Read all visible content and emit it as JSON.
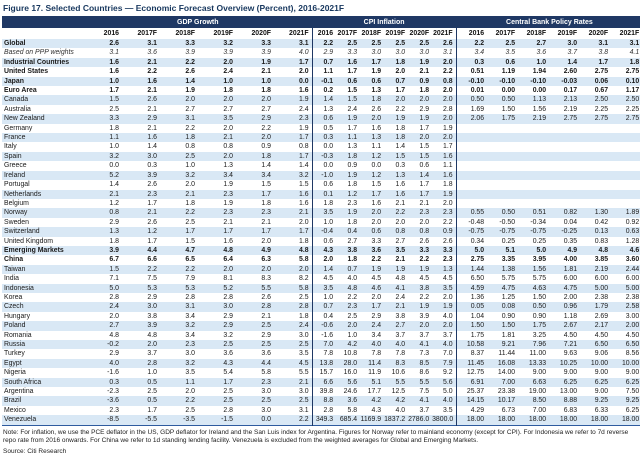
{
  "figure": {
    "title": "Figure 17. Selected Countries — Economic Forecast Overview (Percent), 2016-2021F",
    "note": "Note: For inflation, we use the PCE deflator in the US, GDP deflator for Ireland and the San Luis index for Argentina. Figures for Norway refer to mainland economy (except for CPI). For Indonesia we refer to 7d reverse repo rate from 2016 onwards. For China we refer to 1d standing lending facility. Venezuela is excluded from the weighted averages for Global and Emerging Markets.",
    "source": "Source: Citi Research"
  },
  "colors": {
    "header_band": "#1F3864",
    "row_stripe": "#D9E8F5",
    "title_text": "#17375E"
  },
  "chart_data": {
    "type": "table",
    "groups": [
      "GDP Growth",
      "CPI Inflation",
      "Central Bank Policy Rates"
    ],
    "years": [
      "2016",
      "2017F",
      "2018F",
      "2019F",
      "2020F",
      "2021F"
    ],
    "rows": [
      {
        "name": "Global",
        "style": "bold",
        "gdp": [
          "2.6",
          "3.1",
          "3.3",
          "3.2",
          "3.3",
          "3.1"
        ],
        "cpi": [
          "2.2",
          "2.5",
          "2.5",
          "2.5",
          "2.5",
          "2.6"
        ],
        "cbr": [
          "2.2",
          "2.5",
          "2.7",
          "3.0",
          "3.1",
          "3.1"
        ]
      },
      {
        "name": "Based on PPP weights",
        "style": "italic",
        "gdp": [
          "3.1",
          "3.6",
          "3.9",
          "3.9",
          "3.9",
          "4.0"
        ],
        "cpi": [
          "2.9",
          "3.3",
          "3.0",
          "3.0",
          "3.0",
          "3.1"
        ],
        "cbr": [
          "3.4",
          "3.5",
          "3.6",
          "3.7",
          "3.8",
          "4.1"
        ]
      },
      {
        "name": "Industrial Countries",
        "style": "bold",
        "gdp": [
          "1.6",
          "2.1",
          "2.2",
          "2.0",
          "1.9",
          "1.7"
        ],
        "cpi": [
          "0.7",
          "1.6",
          "1.7",
          "1.8",
          "1.9",
          "2.0"
        ],
        "cbr": [
          "0.3",
          "0.6",
          "1.0",
          "1.4",
          "1.7",
          "1.8"
        ]
      },
      {
        "name": "United States",
        "style": "bold",
        "gdp": [
          "1.6",
          "2.2",
          "2.6",
          "2.4",
          "2.1",
          "2.0"
        ],
        "cpi": [
          "1.1",
          "1.7",
          "1.9",
          "2.0",
          "2.1",
          "2.2"
        ],
        "cbr": [
          "0.51",
          "1.19",
          "1.94",
          "2.60",
          "2.75",
          "2.75"
        ]
      },
      {
        "name": "Japan",
        "style": "bold",
        "gdp": [
          "1.0",
          "1.6",
          "1.4",
          "1.0",
          "1.0",
          "0.0"
        ],
        "cpi": [
          "-0.1",
          "0.6",
          "0.6",
          "0.7",
          "0.9",
          "0.8"
        ],
        "cbr": [
          "-0.10",
          "-0.10",
          "-0.10",
          "-0.03",
          "0.06",
          "0.10"
        ]
      },
      {
        "name": "Euro Area",
        "style": "bold",
        "gdp": [
          "1.7",
          "2.1",
          "1.9",
          "1.8",
          "1.8",
          "1.6"
        ],
        "cpi": [
          "0.2",
          "1.5",
          "1.3",
          "1.7",
          "1.8",
          "2.0"
        ],
        "cbr": [
          "0.01",
          "0.00",
          "0.00",
          "0.17",
          "0.67",
          "1.17"
        ]
      },
      {
        "name": "Canada",
        "style": "",
        "gdp": [
          "1.5",
          "2.6",
          "2.0",
          "2.0",
          "2.0",
          "1.9"
        ],
        "cpi": [
          "1.4",
          "1.5",
          "1.8",
          "2.0",
          "2.0",
          "2.0"
        ],
        "cbr": [
          "0.50",
          "0.50",
          "1.13",
          "2.13",
          "2.50",
          "2.50"
        ]
      },
      {
        "name": "Australia",
        "style": "",
        "gdp": [
          "2.5",
          "2.1",
          "2.7",
          "2.7",
          "2.7",
          "2.4"
        ],
        "cpi": [
          "1.3",
          "2.4",
          "2.6",
          "2.2",
          "2.9",
          "2.8"
        ],
        "cbr": [
          "1.69",
          "1.50",
          "1.56",
          "2.19",
          "2.25",
          "2.25"
        ]
      },
      {
        "name": "New Zealand",
        "style": "",
        "gdp": [
          "3.3",
          "2.9",
          "3.1",
          "3.5",
          "2.9",
          "2.3"
        ],
        "cpi": [
          "0.6",
          "1.9",
          "2.0",
          "1.9",
          "1.9",
          "2.0"
        ],
        "cbr": [
          "2.06",
          "1.75",
          "2.19",
          "2.75",
          "2.75",
          "2.75"
        ]
      },
      {
        "name": "Germany",
        "style": "",
        "gdp": [
          "1.8",
          "2.1",
          "2.2",
          "2.0",
          "2.2",
          "1.9"
        ],
        "cpi": [
          "0.5",
          "1.7",
          "1.6",
          "1.8",
          "1.7",
          "1.9"
        ],
        "cbr": null
      },
      {
        "name": "France",
        "style": "",
        "gdp": [
          "1.1",
          "1.6",
          "1.8",
          "2.1",
          "2.0",
          "1.7"
        ],
        "cpi": [
          "0.3",
          "1.1",
          "1.3",
          "1.8",
          "2.0",
          "2.0"
        ],
        "cbr": null
      },
      {
        "name": "Italy",
        "style": "",
        "gdp": [
          "1.0",
          "1.4",
          "0.8",
          "0.8",
          "0.9",
          "0.8"
        ],
        "cpi": [
          "0.0",
          "1.3",
          "1.1",
          "1.4",
          "1.5",
          "1.7"
        ],
        "cbr": null
      },
      {
        "name": "Spain",
        "style": "",
        "gdp": [
          "3.2",
          "3.0",
          "2.5",
          "2.0",
          "1.8",
          "1.7"
        ],
        "cpi": [
          "-0.3",
          "1.8",
          "1.2",
          "1.5",
          "1.5",
          "1.6"
        ],
        "cbr": null
      },
      {
        "name": "Greece",
        "style": "",
        "gdp": [
          "0.0",
          "0.3",
          "1.0",
          "1.3",
          "1.4",
          "1.4"
        ],
        "cpi": [
          "0.0",
          "0.9",
          "0.0",
          "0.3",
          "0.6",
          "1.1"
        ],
        "cbr": null
      },
      {
        "name": "Ireland",
        "style": "",
        "gdp": [
          "5.2",
          "3.9",
          "3.2",
          "3.4",
          "3.4",
          "3.2"
        ],
        "cpi": [
          "-1.0",
          "1.9",
          "1.2",
          "1.3",
          "1.4",
          "1.6"
        ],
        "cbr": null
      },
      {
        "name": "Portugal",
        "style": "",
        "gdp": [
          "1.4",
          "2.6",
          "2.0",
          "1.9",
          "1.5",
          "1.5"
        ],
        "cpi": [
          "0.6",
          "1.8",
          "1.5",
          "1.6",
          "1.7",
          "1.8"
        ],
        "cbr": null
      },
      {
        "name": "Netherlands",
        "style": "",
        "gdp": [
          "2.1",
          "2.3",
          "2.1",
          "2.3",
          "1.7",
          "1.6"
        ],
        "cpi": [
          "0.1",
          "1.2",
          "1.7",
          "1.6",
          "1.7",
          "1.9"
        ],
        "cbr": null
      },
      {
        "name": "Belgium",
        "style": "",
        "gdp": [
          "1.2",
          "1.7",
          "1.8",
          "1.9",
          "1.8",
          "1.6"
        ],
        "cpi": [
          "1.8",
          "2.3",
          "1.6",
          "2.1",
          "2.1",
          "2.0"
        ],
        "cbr": null
      },
      {
        "name": "Norway",
        "style": "",
        "gdp": [
          "0.8",
          "2.1",
          "2.2",
          "2.3",
          "2.3",
          "2.1"
        ],
        "cpi": [
          "3.5",
          "1.9",
          "2.0",
          "2.2",
          "2.3",
          "2.3"
        ],
        "cbr": [
          "0.55",
          "0.50",
          "0.51",
          "0.82",
          "1.30",
          "1.89"
        ]
      },
      {
        "name": "Sweden",
        "style": "",
        "gdp": [
          "2.9",
          "2.6",
          "2.5",
          "2.1",
          "2.1",
          "2.0"
        ],
        "cpi": [
          "1.0",
          "1.8",
          "2.0",
          "2.0",
          "2.0",
          "2.2"
        ],
        "cbr": [
          "-0.48",
          "-0.50",
          "-0.34",
          "0.04",
          "0.42",
          "0.92"
        ]
      },
      {
        "name": "Switzerland",
        "style": "",
        "gdp": [
          "1.3",
          "1.2",
          "1.7",
          "1.7",
          "1.7",
          "1.7"
        ],
        "cpi": [
          "-0.4",
          "0.4",
          "0.6",
          "0.8",
          "0.8",
          "0.9"
        ],
        "cbr": [
          "-0.75",
          "-0.75",
          "-0.75",
          "-0.25",
          "0.13",
          "0.63"
        ]
      },
      {
        "name": "United Kingdom",
        "style": "",
        "gdp": [
          "1.8",
          "1.7",
          "1.5",
          "1.6",
          "2.0",
          "1.8"
        ],
        "cpi": [
          "0.6",
          "2.7",
          "3.3",
          "2.7",
          "2.6",
          "2.6"
        ],
        "cbr": [
          "0.34",
          "0.25",
          "0.25",
          "0.35",
          "0.83",
          "1.28"
        ]
      },
      {
        "name": "Emerging Markets",
        "style": "bold",
        "gdp": [
          "3.9",
          "4.4",
          "4.7",
          "4.8",
          "4.9",
          "4.8"
        ],
        "cpi": [
          "4.3",
          "3.8",
          "3.6",
          "3.5",
          "3.3",
          "3.3"
        ],
        "cbr": [
          "5.0",
          "5.1",
          "5.0",
          "4.9",
          "4.8",
          "4.6"
        ]
      },
      {
        "name": "China",
        "style": "bold",
        "gdp": [
          "6.7",
          "6.6",
          "6.5",
          "6.4",
          "6.3",
          "5.8"
        ],
        "cpi": [
          "2.0",
          "1.8",
          "2.2",
          "2.1",
          "2.2",
          "2.3"
        ],
        "cbr": [
          "2.75",
          "3.35",
          "3.95",
          "4.00",
          "3.85",
          "3.60"
        ]
      },
      {
        "name": "Taiwan",
        "style": "",
        "gdp": [
          "1.5",
          "2.2",
          "2.2",
          "2.0",
          "2.0",
          "2.0"
        ],
        "cpi": [
          "1.4",
          "0.7",
          "1.9",
          "1.9",
          "1.9",
          "1.3"
        ],
        "cbr": [
          "1.44",
          "1.38",
          "1.56",
          "1.81",
          "2.19",
          "2.44"
        ]
      },
      {
        "name": "India",
        "style": "",
        "gdp": [
          "7.1",
          "7.5",
          "7.9",
          "8.1",
          "8.3",
          "8.2"
        ],
        "cpi": [
          "4.5",
          "4.0",
          "4.5",
          "4.8",
          "4.5",
          "4.5"
        ],
        "cbr": [
          "6.50",
          "5.75",
          "5.75",
          "6.00",
          "6.00",
          "6.00"
        ]
      },
      {
        "name": "Indonesia",
        "style": "",
        "gdp": [
          "5.0",
          "5.3",
          "5.3",
          "5.2",
          "5.5",
          "5.8"
        ],
        "cpi": [
          "3.5",
          "4.8",
          "4.6",
          "4.1",
          "3.8",
          "3.5"
        ],
        "cbr": [
          "4.59",
          "4.75",
          "4.63",
          "4.75",
          "5.00",
          "5.00"
        ]
      },
      {
        "name": "Korea",
        "style": "",
        "gdp": [
          "2.8",
          "2.9",
          "2.8",
          "2.8",
          "2.6",
          "2.5"
        ],
        "cpi": [
          "1.0",
          "2.2",
          "2.0",
          "2.4",
          "2.2",
          "2.0"
        ],
        "cbr": [
          "1.36",
          "1.25",
          "1.50",
          "2.00",
          "2.38",
          "2.38"
        ]
      },
      {
        "name": "Czech",
        "style": "",
        "gdp": [
          "2.4",
          "3.0",
          "3.1",
          "3.0",
          "2.8",
          "2.8"
        ],
        "cpi": [
          "0.7",
          "2.3",
          "1.7",
          "2.1",
          "1.9",
          "1.9"
        ],
        "cbr": [
          "0.05",
          "0.08",
          "0.50",
          "0.96",
          "1.79",
          "2.58"
        ]
      },
      {
        "name": "Hungary",
        "style": "",
        "gdp": [
          "2.0",
          "3.8",
          "3.4",
          "2.9",
          "2.1",
          "1.8"
        ],
        "cpi": [
          "0.4",
          "2.5",
          "2.9",
          "3.8",
          "3.9",
          "4.0"
        ],
        "cbr": [
          "1.04",
          "0.90",
          "0.90",
          "1.18",
          "2.69",
          "3.00"
        ]
      },
      {
        "name": "Poland",
        "style": "",
        "gdp": [
          "2.7",
          "3.9",
          "3.2",
          "2.9",
          "2.5",
          "2.4"
        ],
        "cpi": [
          "-0.6",
          "2.0",
          "2.4",
          "2.7",
          "2.0",
          "2.0"
        ],
        "cbr": [
          "1.50",
          "1.50",
          "1.75",
          "2.67",
          "2.17",
          "2.00"
        ]
      },
      {
        "name": "Romania",
        "style": "",
        "gdp": [
          "4.8",
          "4.8",
          "3.4",
          "3.2",
          "2.9",
          "3.0"
        ],
        "cpi": [
          "-1.6",
          "1.0",
          "3.4",
          "3.7",
          "3.7",
          "3.7"
        ],
        "cbr": [
          "1.75",
          "1.81",
          "3.25",
          "4.50",
          "4.50",
          "4.50"
        ]
      },
      {
        "name": "Russia",
        "style": "",
        "gdp": [
          "-0.2",
          "2.0",
          "2.3",
          "2.5",
          "2.5",
          "2.5"
        ],
        "cpi": [
          "7.0",
          "4.2",
          "4.0",
          "4.0",
          "4.1",
          "4.0"
        ],
        "cbr": [
          "10.58",
          "9.21",
          "7.96",
          "7.21",
          "6.50",
          "6.50"
        ]
      },
      {
        "name": "Turkey",
        "style": "",
        "gdp": [
          "2.9",
          "3.7",
          "3.0",
          "3.6",
          "3.6",
          "3.5"
        ],
        "cpi": [
          "7.8",
          "10.8",
          "7.8",
          "7.8",
          "7.3",
          "7.0"
        ],
        "cbr": [
          "8.37",
          "11.44",
          "11.00",
          "9.63",
          "9.06",
          "8.56"
        ]
      },
      {
        "name": "Egypt",
        "style": "",
        "gdp": [
          "4.0",
          "2.8",
          "3.2",
          "4.3",
          "4.4",
          "4.5"
        ],
        "cpi": [
          "13.8",
          "28.0",
          "11.4",
          "8.3",
          "8.5",
          "7.9"
        ],
        "cbr": [
          "11.45",
          "16.08",
          "13.33",
          "10.25",
          "10.00",
          "10.00"
        ]
      },
      {
        "name": "Nigeria",
        "style": "",
        "gdp": [
          "-1.6",
          "1.0",
          "3.5",
          "5.4",
          "5.8",
          "5.5"
        ],
        "cpi": [
          "15.7",
          "16.0",
          "11.9",
          "10.6",
          "8.6",
          "9.2"
        ],
        "cbr": [
          "12.75",
          "14.00",
          "9.00",
          "9.00",
          "9.00",
          "9.00"
        ]
      },
      {
        "name": "South Africa",
        "style": "",
        "gdp": [
          "0.3",
          "0.5",
          "1.1",
          "1.7",
          "2.3",
          "2.1"
        ],
        "cpi": [
          "6.6",
          "5.6",
          "5.1",
          "5.5",
          "5.5",
          "5.6"
        ],
        "cbr": [
          "6.91",
          "7.00",
          "6.63",
          "6.25",
          "6.25",
          "6.25"
        ]
      },
      {
        "name": "Argentina",
        "style": "",
        "gdp": [
          "-2.3",
          "2.5",
          "2.0",
          "2.5",
          "3.0",
          "3.0"
        ],
        "cpi": [
          "39.8",
          "24.6",
          "17.7",
          "12.5",
          "7.5",
          "5.0"
        ],
        "cbr": [
          "25.37",
          "23.38",
          "19.00",
          "13.00",
          "9.00",
          "7.50"
        ]
      },
      {
        "name": "Brazil",
        "style": "",
        "gdp": [
          "-3.6",
          "0.5",
          "2.2",
          "2.5",
          "2.5",
          "2.5"
        ],
        "cpi": [
          "8.8",
          "3.6",
          "4.2",
          "4.2",
          "4.1",
          "4.0"
        ],
        "cbr": [
          "14.15",
          "10.17",
          "8.50",
          "8.88",
          "9.25",
          "9.25"
        ]
      },
      {
        "name": "Mexico",
        "style": "",
        "gdp": [
          "2.3",
          "1.7",
          "2.5",
          "2.8",
          "3.0",
          "3.1"
        ],
        "cpi": [
          "2.8",
          "5.8",
          "4.3",
          "4.0",
          "3.7",
          "3.5"
        ],
        "cbr": [
          "4.29",
          "6.73",
          "7.00",
          "6.83",
          "6.33",
          "6.25"
        ]
      },
      {
        "name": "Venezuela",
        "style": "",
        "gdp": [
          "-8.5",
          "-5.5",
          "-3.5",
          "-1.5",
          "0.0",
          "2.2"
        ],
        "cpi": [
          "349.3",
          "685.4",
          "1169.9",
          "1837.2",
          "2786.0",
          "3800.0"
        ],
        "cbr": [
          "18.00",
          "18.00",
          "18.00",
          "18.00",
          "18.00",
          "18.00"
        ]
      }
    ]
  }
}
